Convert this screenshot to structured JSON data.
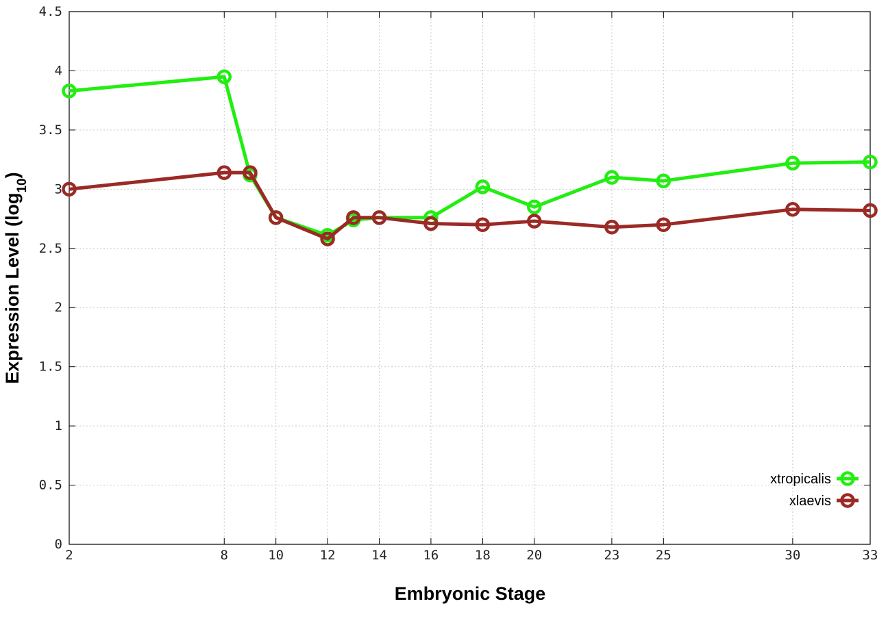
{
  "chart_data": {
    "type": "line",
    "xlabel": "Embryonic Stage",
    "ylabel_main": "Expression Level (log",
    "ylabel_sub": "10",
    "ylabel_end": ")",
    "x": [
      2,
      8,
      9,
      10,
      12,
      13,
      14,
      16,
      18,
      20,
      23,
      25,
      30,
      33
    ],
    "x_tick_labels": [
      "2",
      "8",
      "10",
      "12",
      "14",
      "16",
      "18",
      "20",
      "23",
      "25",
      "30",
      "33"
    ],
    "y_ticks": [
      "0",
      "0.5",
      "1",
      "1.5",
      "2",
      "2.5",
      "3",
      "3.5",
      "4",
      "4.5"
    ],
    "ylim": [
      0,
      4.5
    ],
    "grid": true,
    "legend_position": "bottom-right",
    "series": [
      {
        "name": "xtropicalis",
        "color": "#22ee11",
        "values": [
          3.83,
          3.95,
          3.12,
          2.76,
          2.61,
          2.74,
          2.76,
          2.76,
          3.02,
          2.85,
          3.1,
          3.07,
          3.22,
          3.23
        ]
      },
      {
        "name": "xlaevis",
        "color": "#9b2a26",
        "values": [
          3.0,
          3.14,
          3.14,
          2.76,
          2.58,
          2.76,
          2.76,
          2.71,
          2.7,
          2.73,
          2.68,
          2.7,
          2.83,
          2.82
        ]
      }
    ]
  }
}
